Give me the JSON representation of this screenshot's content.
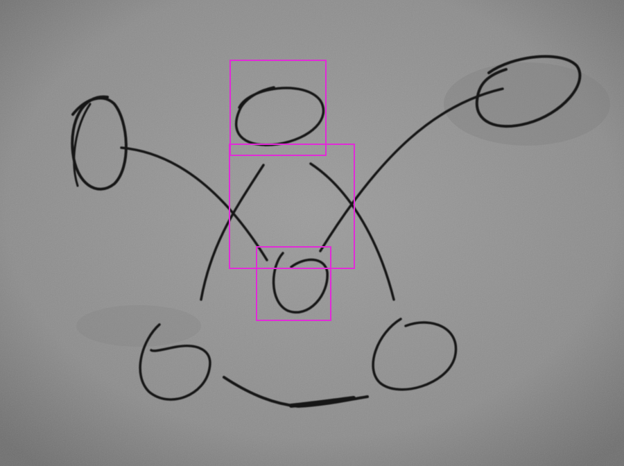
{
  "image": {
    "kind": "photo",
    "description_colors": {
      "board": "#8e8e8e",
      "ink": "#141414",
      "annotation_box": "#e22ad8"
    }
  },
  "annotations": [
    {
      "name": "top-node-box"
    },
    {
      "name": "crossing-box"
    },
    {
      "name": "mid-node-box"
    }
  ]
}
